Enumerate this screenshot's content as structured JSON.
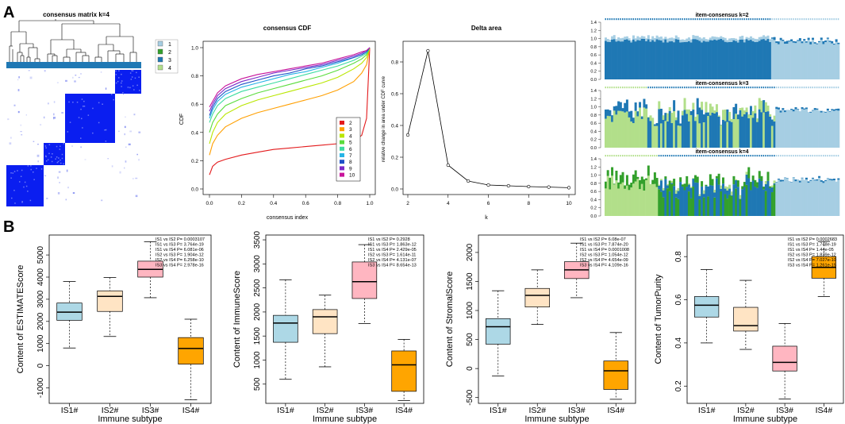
{
  "panel_labels": {
    "a": "A",
    "b": "B"
  },
  "consensus_matrix": {
    "title": "consensus matrix k=4",
    "legend": [
      "1",
      "2",
      "3",
      "4"
    ],
    "colors": {
      "1": "#a6cee3",
      "2": "#33a02c",
      "3": "#1f78b4",
      "4": "#b2df8a"
    }
  },
  "cdf": {
    "title": "consensus CDF",
    "xlabel": "consensus index",
    "ylabel": "CDF",
    "xticks": [
      "0.0",
      "0.2",
      "0.4",
      "0.6",
      "0.8",
      "1.0"
    ],
    "yticks": [
      "0.0",
      "0.2",
      "0.4",
      "0.6",
      "0.8",
      "1.0"
    ],
    "legend": [
      "2",
      "3",
      "4",
      "5",
      "6",
      "7",
      "8",
      "9",
      "10"
    ],
    "colors": [
      "#e31a1c",
      "#ff9f00",
      "#b9e600",
      "#5adc3c",
      "#3cdca0",
      "#28b4e6",
      "#1e50c8",
      "#7a28c8",
      "#c8149b"
    ]
  },
  "delta": {
    "title": "Delta area",
    "xlabel": "k",
    "ylabel": "relative change in area under CDF curve",
    "xticks": [
      "2",
      "4",
      "6",
      "8",
      "10"
    ],
    "yticks": [
      "0.0",
      "0.2",
      "0.4",
      "0.6",
      "0.8"
    ]
  },
  "item_consensus": [
    {
      "title": "item-consensus k=2"
    },
    {
      "title": "item-consensus k=3"
    },
    {
      "title": "item-consensus k=4"
    }
  ],
  "item_yticks": [
    "0.0",
    "0.2",
    "0.4",
    "0.6",
    "0.8",
    "1.0",
    "1.2",
    "1.4"
  ],
  "chart_data": [
    {
      "type": "line",
      "title": "consensus CDF",
      "xlabel": "consensus index",
      "ylabel": "CDF",
      "x": [
        0.0,
        0.02,
        0.05,
        0.1,
        0.2,
        0.3,
        0.4,
        0.5,
        0.6,
        0.7,
        0.8,
        0.9,
        0.95,
        0.98,
        1.0
      ],
      "series": [
        {
          "name": "2",
          "values": [
            0.1,
            0.16,
            0.19,
            0.21,
            0.24,
            0.26,
            0.28,
            0.29,
            0.3,
            0.31,
            0.32,
            0.34,
            0.38,
            0.5,
            1.0
          ]
        },
        {
          "name": "3",
          "values": [
            0.24,
            0.32,
            0.38,
            0.44,
            0.5,
            0.54,
            0.57,
            0.6,
            0.63,
            0.66,
            0.7,
            0.76,
            0.82,
            0.88,
            1.0
          ]
        },
        {
          "name": "4",
          "values": [
            0.32,
            0.4,
            0.47,
            0.53,
            0.59,
            0.63,
            0.66,
            0.69,
            0.72,
            0.75,
            0.79,
            0.85,
            0.89,
            0.93,
            1.0
          ]
        },
        {
          "name": "5",
          "values": [
            0.4,
            0.47,
            0.53,
            0.59,
            0.64,
            0.68,
            0.71,
            0.74,
            0.77,
            0.8,
            0.84,
            0.89,
            0.92,
            0.95,
            1.0
          ]
        },
        {
          "name": "6",
          "values": [
            0.47,
            0.53,
            0.59,
            0.64,
            0.69,
            0.72,
            0.75,
            0.78,
            0.81,
            0.84,
            0.87,
            0.91,
            0.94,
            0.96,
            1.0
          ]
        },
        {
          "name": "7",
          "values": [
            0.5,
            0.56,
            0.62,
            0.67,
            0.72,
            0.75,
            0.78,
            0.81,
            0.83,
            0.86,
            0.89,
            0.93,
            0.95,
            0.97,
            1.0
          ]
        },
        {
          "name": "8",
          "values": [
            0.52,
            0.58,
            0.64,
            0.69,
            0.74,
            0.77,
            0.8,
            0.82,
            0.85,
            0.87,
            0.9,
            0.93,
            0.95,
            0.97,
            1.0
          ]
        },
        {
          "name": "9",
          "values": [
            0.55,
            0.6,
            0.66,
            0.71,
            0.76,
            0.79,
            0.82,
            0.84,
            0.86,
            0.88,
            0.91,
            0.94,
            0.96,
            0.98,
            1.0
          ]
        },
        {
          "name": "10",
          "values": [
            0.58,
            0.62,
            0.68,
            0.73,
            0.78,
            0.81,
            0.83,
            0.85,
            0.87,
            0.89,
            0.92,
            0.95,
            0.97,
            0.98,
            1.0
          ]
        }
      ],
      "xlim": [
        0,
        1
      ],
      "ylim": [
        0,
        1
      ]
    },
    {
      "type": "line",
      "title": "Delta area",
      "xlabel": "k",
      "ylabel": "relative change in area under CDF curve",
      "x": [
        2,
        3,
        4,
        5,
        6,
        7,
        8,
        9,
        10
      ],
      "values": [
        0.34,
        0.87,
        0.15,
        0.05,
        0.025,
        0.02,
        0.015,
        0.012,
        0.008
      ],
      "xlim": [
        2,
        10
      ],
      "ylim": [
        0,
        0.9
      ]
    },
    {
      "type": "box",
      "categories": [
        "IS1#",
        "IS2#",
        "IS3#",
        "IS4#"
      ],
      "xlabel": "Immune subtype",
      "ylabel": "Content of ESTIMATEScore",
      "ylim": [
        -1700,
        5900
      ],
      "yticks": [
        -1000,
        0,
        1000,
        2000,
        3000,
        4000,
        5000
      ],
      "colors": [
        "#add8e6",
        "#ffe4c4",
        "#ffb6c1",
        "#ffa500"
      ],
      "boxes": [
        {
          "min": 800,
          "q1": 2050,
          "median": 2420,
          "q3": 2830,
          "max": 3800
        },
        {
          "min": 1320,
          "q1": 2450,
          "median": 3130,
          "q3": 3380,
          "max": 3980
        },
        {
          "min": 3070,
          "q1": 4000,
          "median": 4350,
          "q3": 4720,
          "max": 5600
        },
        {
          "min": -1540,
          "q1": 70,
          "median": 780,
          "q3": 1270,
          "max": 2100
        }
      ],
      "pvalues": [
        "IS1 vs IS2 P= 0.0003107",
        "IS1 vs IS3 P= 3.764e-19",
        "IS1 vs IS4 P= 6.081e-06",
        "IS2 vs IS3 P= 1.904e-12",
        "IS2 vs IS4 P= 6.258e-10",
        "IS3 vs IS4 P= 2.978e-16"
      ]
    },
    {
      "type": "box",
      "categories": [
        "IS1#",
        "IS2#",
        "IS3#",
        "IS4#"
      ],
      "xlabel": "Immune subtype",
      "ylabel": "Content of ImmuneScore",
      "ylim": [
        100,
        3600
      ],
      "yticks": [
        500,
        1000,
        1500,
        2000,
        2500,
        3000,
        3500
      ],
      "colors": [
        "#add8e6",
        "#ffe4c4",
        "#ffb6c1",
        "#ffa500"
      ],
      "boxes": [
        {
          "min": 600,
          "q1": 1370,
          "median": 1770,
          "q3": 1930,
          "max": 2670
        },
        {
          "min": 860,
          "q1": 1550,
          "median": 1900,
          "q3": 2050,
          "max": 2350
        },
        {
          "min": 1760,
          "q1": 2280,
          "median": 2630,
          "q3": 3040,
          "max": 3400
        },
        {
          "min": 160,
          "q1": 350,
          "median": 900,
          "q3": 1190,
          "max": 1430
        }
      ],
      "pvalues": [
        "IS1 vs IS2 P= 0.2928",
        "IS1 vs IS3 P= 1.863e-12",
        "IS1 vs IS4 P= 2.429e-05",
        "IS2 vs IS3 P= 1.614e-11",
        "IS2 vs IS4 P= 4.131e-07",
        "IS3 vs IS4 P= 8.654e-13"
      ]
    },
    {
      "type": "box",
      "categories": [
        "IS1#",
        "IS2#",
        "IS3#",
        "IS4#"
      ],
      "xlabel": "Immune subtype",
      "ylabel": "Content of StromalScore",
      "ylim": [
        -600,
        2300
      ],
      "yticks": [
        -500,
        0,
        500,
        1000,
        1500,
        2000
      ],
      "colors": [
        "#add8e6",
        "#ffe4c4",
        "#ffb6c1",
        "#ffa500"
      ],
      "boxes": [
        {
          "min": -130,
          "q1": 420,
          "median": 720,
          "q3": 860,
          "max": 1340
        },
        {
          "min": 760,
          "q1": 1060,
          "median": 1260,
          "q3": 1380,
          "max": 1700
        },
        {
          "min": 1220,
          "q1": 1550,
          "median": 1700,
          "q3": 1840,
          "max": 2160
        },
        {
          "min": -530,
          "q1": -360,
          "median": -40,
          "q3": 130,
          "max": 620
        }
      ],
      "pvalues": [
        "IS1 vs IS2 P= 6.08e-07",
        "IS1 vs IS3 P= 7.874e-20",
        "IS1 vs IS4 P= 0.0001008",
        "IS2 vs IS3 P= 1.054e-12",
        "IS2 vs IS4 P= 4.654e-09",
        "IS3 vs IS4 P= 4.109e-16"
      ]
    },
    {
      "type": "box",
      "categories": [
        "IS1#",
        "IS2#",
        "IS3#",
        "IS4#"
      ],
      "xlabel": "Immune subtype",
      "ylabel": "Content of TumorPurity",
      "ylim": [
        0.12,
        0.9
      ],
      "yticks": [
        0.2,
        0.4,
        0.6,
        0.8
      ],
      "colors": [
        "#add8e6",
        "#ffe4c4",
        "#ffb6c1",
        "#ffa500"
      ],
      "boxes": [
        {
          "min": 0.4,
          "q1": 0.52,
          "median": 0.575,
          "q3": 0.615,
          "max": 0.74
        },
        {
          "min": 0.37,
          "q1": 0.455,
          "median": 0.48,
          "q3": 0.565,
          "max": 0.69
        },
        {
          "min": 0.14,
          "q1": 0.27,
          "median": 0.31,
          "q3": 0.385,
          "max": 0.49
        },
        {
          "min": 0.615,
          "q1": 0.7,
          "median": 0.75,
          "q3": 0.8,
          "max": 0.87
        }
      ],
      "pvalues": [
        "IS1 vs IS2 P= 0.0002683",
        "IS1 vs IS3 P= 1.748e-19",
        "IS1 vs IS4 P= 1.44e-05",
        "IS2 vs IS3 P= 1.839e-12",
        "IS2 vs IS4 P= 7.027e-10",
        "IS3 vs IS4 P= 1.261e-15"
      ]
    }
  ]
}
